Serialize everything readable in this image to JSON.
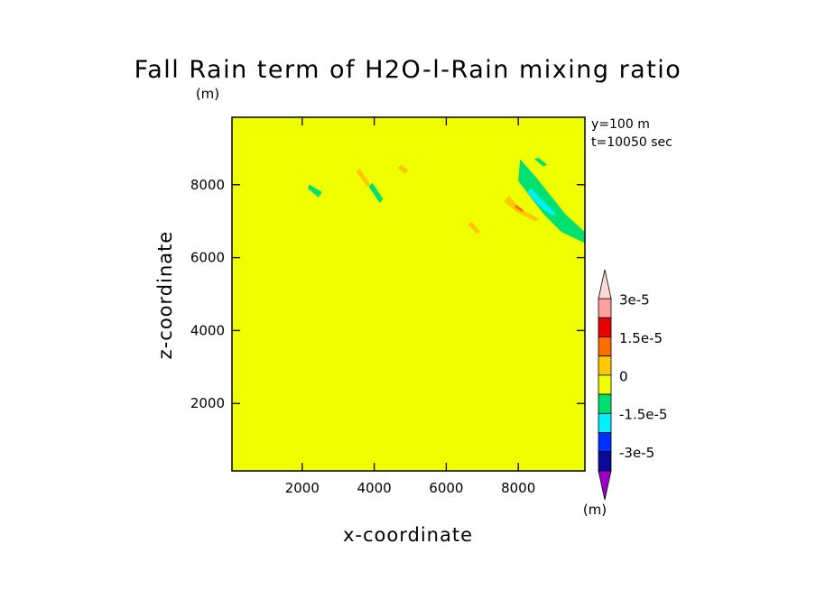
{
  "chart_data": {
    "type": "heatmap",
    "title": "Fall Rain term of H2O-l-Rain mixing ratio",
    "units_label": "(m)",
    "info_lines": [
      "y=100 m",
      "t=10050 sec"
    ],
    "xlabel": "x-coordinate",
    "ylabel": "z-coordinate",
    "xlim": [
      50,
      9850
    ],
    "ylim": [
      150,
      9850
    ],
    "x_ticks": [
      2000,
      4000,
      6000,
      8000
    ],
    "x_tick_labels": [
      "2000",
      "4000",
      "6000",
      "8000"
    ],
    "y_ticks": [
      2000,
      4000,
      6000,
      8000
    ],
    "y_tick_labels": [
      "2000",
      "4000",
      "6000",
      "8000"
    ],
    "background_level_color": "#f0ff00",
    "colorbar": {
      "levels": [
        -3e-05,
        -2.25e-05,
        -1.5e-05,
        -7.5e-06,
        0,
        7.5e-06,
        1.5e-05,
        2.25e-05,
        3e-05
      ],
      "colors": [
        "#9a00c8",
        "#0a0a9a",
        "#0030ff",
        "#00f0ff",
        "#00e070",
        "#f0ff00",
        "#ffc800",
        "#ff6c00",
        "#e80000",
        "#ffa0a0",
        "#ffd8d8"
      ],
      "labels": [
        "3e-5",
        "1.5e-5",
        "0",
        "-1.5e-5",
        "-3e-5"
      ],
      "units_label": "(m)"
    },
    "regions": [
      {
        "level": 5,
        "points": [
          [
            50,
            7800
          ],
          [
            800,
            7000
          ],
          [
            1800,
            5700
          ],
          [
            1900,
            4600
          ],
          [
            1600,
            3500
          ],
          [
            1300,
            2000
          ],
          [
            900,
            600
          ],
          [
            300,
            150
          ],
          [
            50,
            150
          ]
        ]
      },
      {
        "level": 5,
        "points": [
          [
            2000,
            7400
          ],
          [
            3300,
            6500
          ],
          [
            3000,
            5200
          ],
          [
            3200,
            3400
          ],
          [
            2800,
            2200
          ],
          [
            3400,
            1200
          ],
          [
            2700,
            150
          ],
          [
            1400,
            150
          ],
          [
            1700,
            1800
          ],
          [
            1400,
            3400
          ],
          [
            1900,
            4700
          ],
          [
            1800,
            6000
          ]
        ]
      },
      {
        "level": 5,
        "points": [
          [
            4400,
            7100
          ],
          [
            4800,
            6200
          ],
          [
            5600,
            5800
          ],
          [
            6200,
            4600
          ],
          [
            6700,
            4200
          ],
          [
            6500,
            3100
          ],
          [
            6800,
            2200
          ],
          [
            7400,
            1400
          ],
          [
            7000,
            150
          ],
          [
            4900,
            150
          ],
          [
            5300,
            1300
          ],
          [
            5500,
            2700
          ],
          [
            5200,
            3900
          ],
          [
            4500,
            5200
          ],
          [
            4100,
            6300
          ]
        ]
      },
      {
        "level": 5,
        "points": [
          [
            7400,
            8000
          ],
          [
            8400,
            7200
          ],
          [
            8800,
            5800
          ],
          [
            8600,
            4700
          ],
          [
            9200,
            3600
          ],
          [
            9400,
            2500
          ],
          [
            9850,
            1900
          ],
          [
            9850,
            4100
          ],
          [
            9500,
            5300
          ],
          [
            9400,
            6600
          ],
          [
            8800,
            7500
          ]
        ]
      },
      {
        "level": 5,
        "points": [
          [
            300,
            9850
          ],
          [
            700,
            9000
          ],
          [
            1400,
            8800
          ],
          [
            1800,
            9300
          ],
          [
            1600,
            9850
          ]
        ]
      },
      {
        "level": 5,
        "points": [
          [
            2200,
            9850
          ],
          [
            2900,
            8600
          ],
          [
            3500,
            8200
          ],
          [
            3800,
            8900
          ],
          [
            3500,
            9850
          ]
        ]
      },
      {
        "level": 5,
        "points": [
          [
            5100,
            9850
          ],
          [
            5700,
            8800
          ],
          [
            6300,
            8400
          ],
          [
            6800,
            7700
          ],
          [
            7300,
            8200
          ],
          [
            6800,
            9300
          ],
          [
            6300,
            9850
          ]
        ]
      },
      {
        "level": 5,
        "points": [
          [
            7800,
            9850
          ],
          [
            8500,
            8900
          ],
          [
            9300,
            8200
          ],
          [
            9850,
            7600
          ],
          [
            9850,
            8800
          ],
          [
            9200,
            9850
          ]
        ]
      },
      {
        "level": 4,
        "points": [
          [
            8050,
            8700
          ],
          [
            8500,
            8200
          ],
          [
            9300,
            7200
          ],
          [
            9850,
            6700
          ],
          [
            9850,
            6400
          ],
          [
            9200,
            6700
          ],
          [
            8700,
            7200
          ],
          [
            8000,
            8100
          ]
        ]
      },
      {
        "level": 4,
        "points": [
          [
            2200,
            8000
          ],
          [
            2550,
            7800
          ],
          [
            2450,
            7650
          ],
          [
            2150,
            7900
          ]
        ]
      },
      {
        "level": 4,
        "points": [
          [
            3950,
            8050
          ],
          [
            4250,
            7600
          ],
          [
            4150,
            7500
          ],
          [
            3850,
            7950
          ]
        ]
      },
      {
        "level": 4,
        "points": [
          [
            8550,
            8750
          ],
          [
            8800,
            8550
          ],
          [
            8700,
            8500
          ],
          [
            8450,
            8700
          ]
        ]
      },
      {
        "level": 3,
        "points": [
          [
            8350,
            7900
          ],
          [
            8750,
            7500
          ],
          [
            9050,
            7200
          ],
          [
            8950,
            7150
          ],
          [
            8600,
            7400
          ],
          [
            8250,
            7800
          ]
        ]
      },
      {
        "level": 6,
        "points": [
          [
            7750,
            7700
          ],
          [
            8050,
            7350
          ],
          [
            8600,
            7050
          ],
          [
            8450,
            7000
          ],
          [
            7950,
            7250
          ],
          [
            7600,
            7550
          ]
        ]
      },
      {
        "level": 6,
        "points": [
          [
            4750,
            8550
          ],
          [
            4950,
            8400
          ],
          [
            4850,
            8300
          ],
          [
            4650,
            8450
          ]
        ]
      },
      {
        "level": 6,
        "points": [
          [
            6700,
            7000
          ],
          [
            6950,
            6700
          ],
          [
            6850,
            6650
          ],
          [
            6600,
            6900
          ]
        ]
      },
      {
        "level": 6,
        "points": [
          [
            3600,
            8450
          ],
          [
            3900,
            8000
          ],
          [
            3800,
            7950
          ],
          [
            3500,
            8350
          ]
        ]
      },
      {
        "level": 7,
        "points": [
          [
            7950,
            7450
          ],
          [
            8150,
            7300
          ],
          [
            8100,
            7250
          ],
          [
            7900,
            7400
          ]
        ]
      }
    ]
  }
}
